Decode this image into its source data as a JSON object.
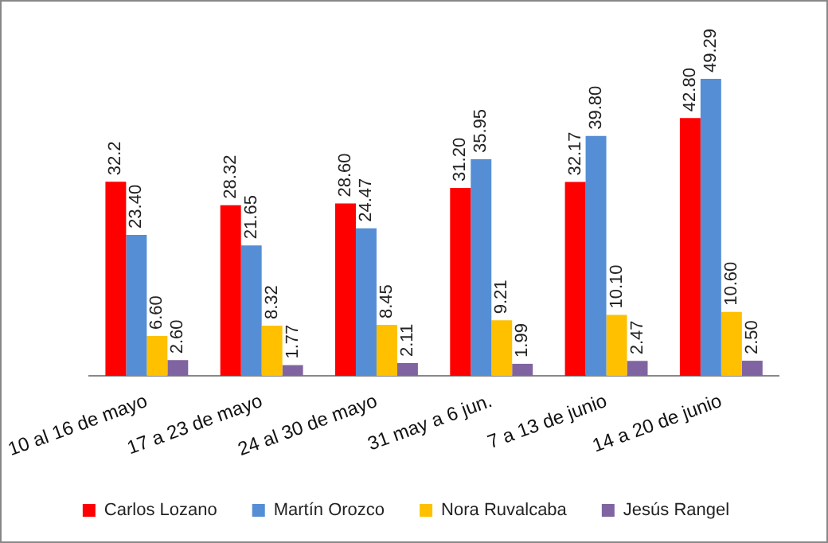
{
  "chart_data": {
    "type": "bar",
    "categories": [
      "10 al 16 de mayo",
      "17 a 23 de mayo",
      "24 al 30 de mayo",
      "31 may a 6 jun.",
      "7 a 13 de junio",
      "14 a 20 de junio"
    ],
    "legend": "bottom",
    "grid": false,
    "series": [
      {
        "name": "Carlos Lozano",
        "color": "#ff0000",
        "values": [
          32.2,
          28.32,
          28.6,
          31.2,
          32.17,
          42.8
        ],
        "value_labels": [
          "32.2",
          "28.32",
          "28.60",
          "31.20",
          "32.17",
          "42.80"
        ]
      },
      {
        "name": "Martín Orozco",
        "color": "#558ed5",
        "values": [
          23.4,
          21.65,
          24.47,
          35.95,
          39.8,
          49.29
        ],
        "value_labels": [
          "23.40",
          "21.65",
          "24.47",
          "35.95",
          "39.80",
          "49.29"
        ]
      },
      {
        "name": "Nora Ruvalcaba",
        "color": "#ffc000",
        "values": [
          6.6,
          8.32,
          8.45,
          9.21,
          10.1,
          10.6
        ],
        "value_labels": [
          "6.60",
          "8.32",
          "8.45",
          "9.21",
          "10.10",
          "10.60"
        ]
      },
      {
        "name": "Jesús Rangel",
        "color": "#8064a2",
        "values": [
          2.6,
          1.77,
          2.11,
          1.99,
          2.47,
          2.5
        ],
        "value_labels": [
          "2.60",
          "1.77",
          "2.11",
          "1.99",
          "2.47",
          "2.50"
        ]
      }
    ]
  }
}
